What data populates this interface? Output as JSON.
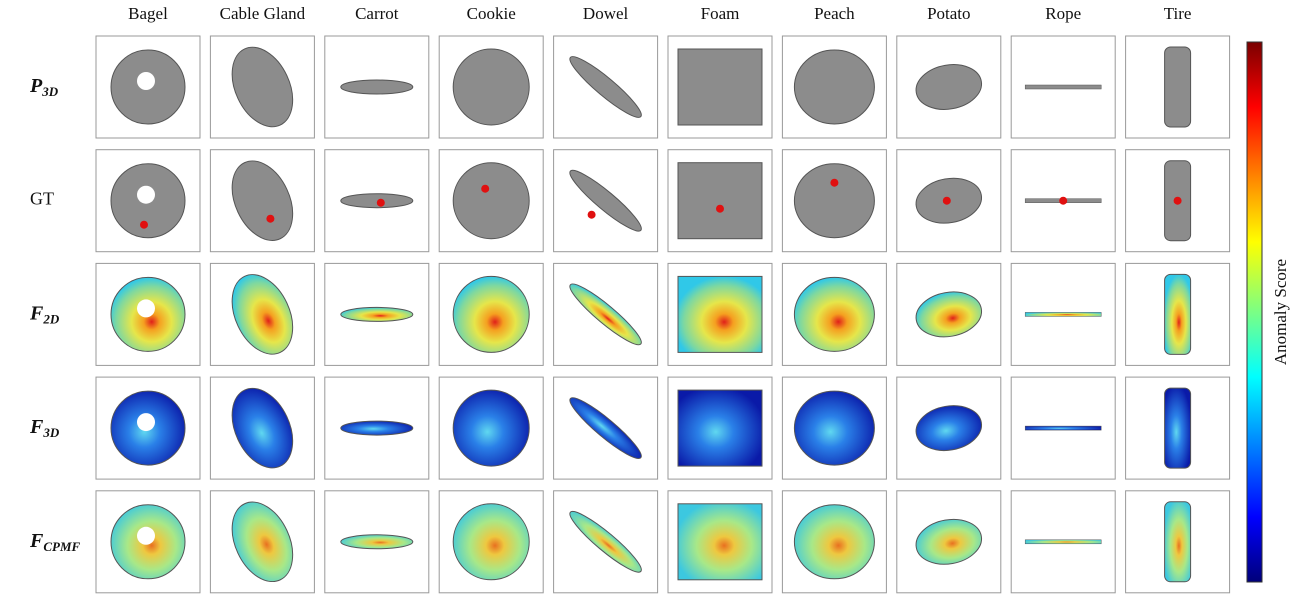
{
  "columns": [
    "Bagel",
    "Cable Gland",
    "Carrot",
    "Cookie",
    "Dowel",
    "Foam",
    "Peach",
    "Potato",
    "Rope",
    "Tire"
  ],
  "rows": [
    {
      "symbol": "P",
      "subscript": "3D"
    },
    {
      "symbol": "GT"
    },
    {
      "symbol": "F",
      "subscript": "2D"
    },
    {
      "symbol": "F",
      "subscript": "3D"
    },
    {
      "symbol": "F",
      "subscript": "CPMF"
    }
  ],
  "colorbar_label": "Anomaly Score"
}
